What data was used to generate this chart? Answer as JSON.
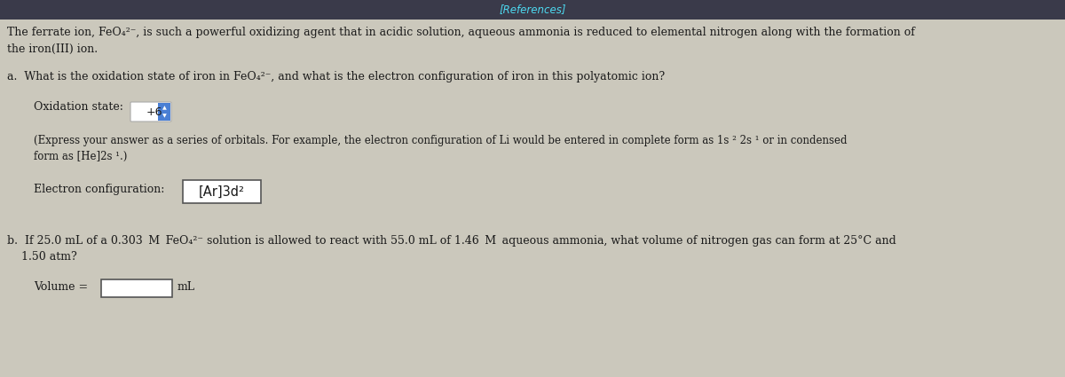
{
  "bg_color": "#d8d4c8",
  "header_bg": "#3a3a4a",
  "header_text": "[References]",
  "header_text_color": "#4dd9f0",
  "body_bg": "#cbc8bc",
  "text_color": "#1a1a1a",
  "intro_line1": "The ferrate ion, FeO₄²⁻, is such a powerful oxidizing agent that in acidic solution, aqueous ammonia is reduced to elemental nitrogen along with the formation of",
  "intro_line2": "the iron(III) ion.",
  "part_a_q": "a.  What is the oxidation state of iron in FeO₄²⁻, and what is the electron configuration of iron in this polyatomic ion?",
  "ox_label": "Oxidation state:  ",
  "ox_value": "+6",
  "express_line1": "(Express your answer as a series of orbitals. For example, the electron configuration of Li would be entered in complete form as 1s ² 2s ¹ or in condensed",
  "express_line2": "form as [He]2s ¹.)",
  "elec_label": "Electron configuration: ",
  "elec_value": "[Ar]3d²",
  "part_b_line1": "b.  If 25.0 mL of a 0.303  M  FeO₄²⁻ solution is allowed to react with 55.0 mL of 1.46  M  aqueous ammonia, what volume of nitrogen gas can form at 25°C and",
  "part_b_line2": "    1.50 atm?",
  "vol_label": "Volume = ",
  "vol_unit": "mL",
  "fs_header": 8.5,
  "fs_body": 9.0,
  "fs_small": 8.5,
  "fs_answer": 10.5
}
